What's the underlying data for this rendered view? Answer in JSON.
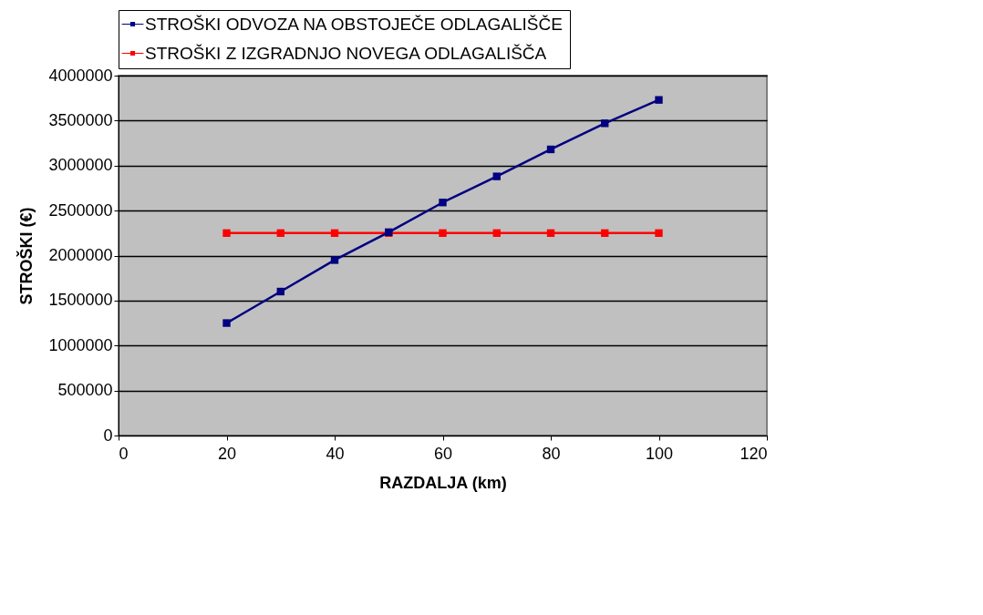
{
  "chart_data": {
    "type": "line",
    "xlabel": "RAZDALJA (km)",
    "ylabel": "STROŠKI (€)",
    "x": [
      20,
      30,
      40,
      50,
      60,
      70,
      80,
      90,
      100
    ],
    "series": [
      {
        "name": "STROŠKI ODVOZA NA OBSTOJEČE ODLAGALIŠČE",
        "color": "#000080",
        "values": [
          1250000,
          1600000,
          1950000,
          2260000,
          2590000,
          2880000,
          3180000,
          3470000,
          3730000
        ]
      },
      {
        "name": "STROŠKI Z IZGRADNJO NOVEGA ODLAGALIŠČA",
        "color": "#ff0000",
        "values": [
          2250000,
          2250000,
          2250000,
          2250000,
          2250000,
          2250000,
          2250000,
          2250000,
          2250000
        ]
      }
    ],
    "xlim": [
      0,
      120
    ],
    "xticks": [
      0,
      20,
      40,
      60,
      80,
      100,
      120
    ],
    "ylim": [
      0,
      4000000
    ],
    "yticks": [
      0,
      500000,
      1000000,
      1500000,
      2000000,
      2500000,
      3000000,
      3500000,
      4000000
    ],
    "grid": "y",
    "legend": "top",
    "marker": "square",
    "line_style": "solid"
  }
}
